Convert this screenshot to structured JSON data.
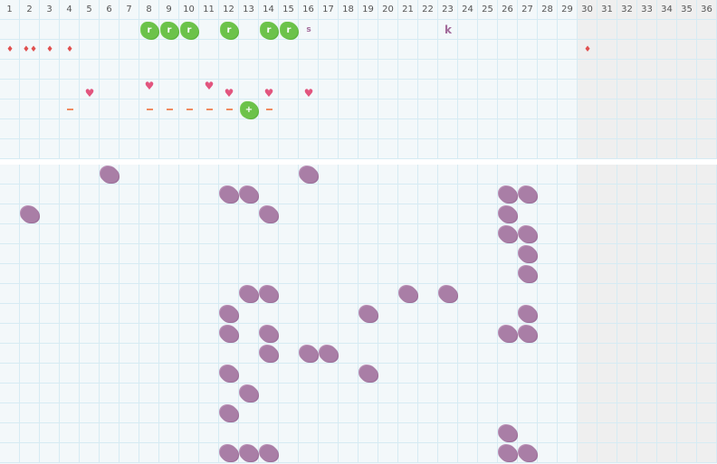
{
  "columns": [
    "1",
    "2",
    "3",
    "4",
    "5",
    "6",
    "7",
    "8",
    "9",
    "10",
    "11",
    "12",
    "13",
    "14",
    "15",
    "16",
    "17",
    "18",
    "19",
    "20",
    "21",
    "22",
    "23",
    "24",
    "25",
    "26",
    "27",
    "28",
    "29",
    "30",
    "31",
    "32",
    "33",
    "34",
    "35",
    "36"
  ],
  "shaded_columns_from": 30,
  "colors": {
    "grid_bg": "#f3f8fa",
    "grid_line": "#d6ebf3",
    "shade": "#efefef",
    "green": "#6cc24a",
    "purple": "#a97ea6",
    "drop": "#e0504f",
    "heart": "#e2557e",
    "dash": "#f08a60"
  },
  "top_rows": 7,
  "bottom_rows": 15,
  "top_marks": [
    {
      "row": 1,
      "col": 8,
      "type": "green-stamp",
      "text": "r"
    },
    {
      "row": 1,
      "col": 9,
      "type": "green-stamp",
      "text": "r"
    },
    {
      "row": 1,
      "col": 10,
      "type": "green-stamp",
      "text": "r"
    },
    {
      "row": 1,
      "col": 12,
      "type": "green-stamp",
      "text": "r"
    },
    {
      "row": 1,
      "col": 14,
      "type": "green-stamp",
      "text": "r"
    },
    {
      "row": 1,
      "col": 15,
      "type": "green-stamp",
      "text": "r"
    },
    {
      "row": 1,
      "col": 16,
      "type": "letter",
      "text": "s"
    },
    {
      "row": 1,
      "col": 23,
      "type": "letter-big",
      "text": "k"
    },
    {
      "row": 2,
      "col": 1,
      "type": "drop",
      "text": "♦"
    },
    {
      "row": 2,
      "col": 2,
      "type": "drop",
      "text": "♦♦"
    },
    {
      "row": 2,
      "col": 3,
      "type": "drop",
      "text": "♦"
    },
    {
      "row": 2,
      "col": 4,
      "type": "drop",
      "text": "♦"
    },
    {
      "row": 2,
      "col": 30,
      "type": "drop",
      "text": "♦"
    },
    {
      "row": 4,
      "col": 5,
      "type": "heart",
      "text": "♥"
    },
    {
      "row": 4,
      "col": 8,
      "type": "heart-high",
      "text": "♥"
    },
    {
      "row": 4,
      "col": 11,
      "type": "heart-high",
      "text": "♥"
    },
    {
      "row": 4,
      "col": 12,
      "type": "heart",
      "text": "♥"
    },
    {
      "row": 4,
      "col": 14,
      "type": "heart",
      "text": "♥"
    },
    {
      "row": 4,
      "col": 16,
      "type": "heart",
      "text": "♥"
    },
    {
      "row": 5,
      "col": 4,
      "type": "dash"
    },
    {
      "row": 5,
      "col": 8,
      "type": "dash"
    },
    {
      "row": 5,
      "col": 9,
      "type": "dash"
    },
    {
      "row": 5,
      "col": 10,
      "type": "dash"
    },
    {
      "row": 5,
      "col": 11,
      "type": "dash"
    },
    {
      "row": 5,
      "col": 12,
      "type": "dash"
    },
    {
      "row": 5,
      "col": 13,
      "type": "green-stamp",
      "text": "+"
    },
    {
      "row": 5,
      "col": 14,
      "type": "dash"
    }
  ],
  "bottom_marks": [
    [
      1,
      6
    ],
    [
      1,
      16
    ],
    [
      2,
      12
    ],
    [
      2,
      13
    ],
    [
      2,
      26
    ],
    [
      2,
      27
    ],
    [
      3,
      2
    ],
    [
      3,
      14
    ],
    [
      3,
      26
    ],
    [
      4,
      26
    ],
    [
      4,
      27
    ],
    [
      5,
      27
    ],
    [
      6,
      27
    ],
    [
      7,
      13
    ],
    [
      7,
      14
    ],
    [
      7,
      21
    ],
    [
      7,
      23
    ],
    [
      8,
      12
    ],
    [
      8,
      19
    ],
    [
      8,
      27
    ],
    [
      9,
      12
    ],
    [
      9,
      14
    ],
    [
      9,
      26
    ],
    [
      9,
      27
    ],
    [
      10,
      14
    ],
    [
      10,
      16
    ],
    [
      10,
      17
    ],
    [
      11,
      12
    ],
    [
      11,
      19
    ],
    [
      12,
      13
    ],
    [
      13,
      12
    ],
    [
      14,
      26
    ],
    [
      15,
      12
    ],
    [
      15,
      13
    ],
    [
      15,
      14
    ],
    [
      15,
      26
    ],
    [
      15,
      27
    ]
  ]
}
